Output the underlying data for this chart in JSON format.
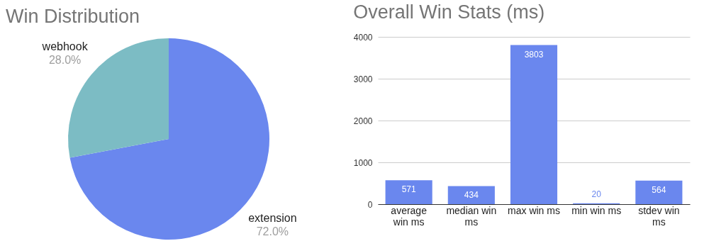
{
  "chart_data": [
    {
      "type": "pie",
      "title": "Win Distribution",
      "categories": [
        "extension",
        "webhook"
      ],
      "values": [
        72,
        28
      ],
      "colors": [
        "#6a87ee",
        "#7cbcc4"
      ],
      "value_labels": [
        "72.0%",
        "28.0%"
      ]
    },
    {
      "type": "bar",
      "title": "Overall Win Stats (ms)",
      "categories": [
        "average win ms",
        "median win ms",
        "max win ms",
        "min win ms",
        "stdev win ms"
      ],
      "values": [
        571,
        434,
        3803,
        20,
        564
      ],
      "color": "#6a87ee",
      "ylim": [
        0,
        4000
      ],
      "yticks": [
        0,
        1000,
        2000,
        3000,
        4000
      ],
      "grid": "y",
      "data_labels": true
    }
  ]
}
